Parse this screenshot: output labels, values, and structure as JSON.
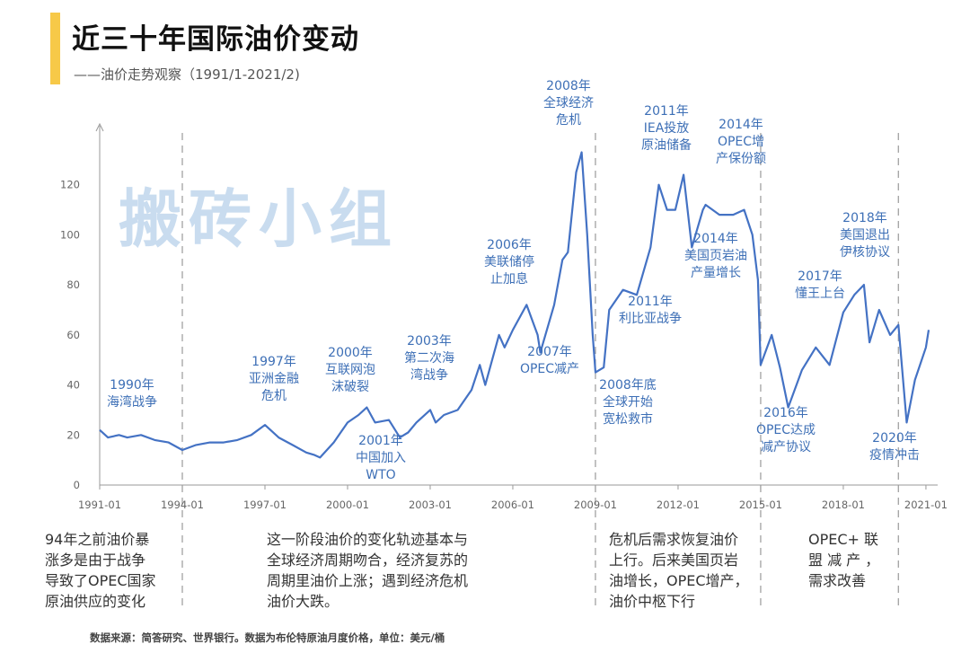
{
  "title": "近三十年国际油价变动",
  "subtitle": "——油价走势观察（1991/1-2021/2)",
  "watermark": "搬砖小组",
  "source": "数据来源：简答研究、世界银行。数据为布伦特原油月度价格，单位：美元/桶",
  "colors": {
    "line": "#4472c4",
    "event_text": "#3d6fb6",
    "accent": "#f7c948"
  },
  "chart_data": {
    "type": "line",
    "ylim": [
      0,
      140
    ],
    "y_ticks": [
      0,
      20,
      40,
      60,
      80,
      100,
      120
    ],
    "x_tick_labels": [
      "1991-01",
      "1994-01",
      "1997-01",
      "2000-01",
      "2003-01",
      "2006-01",
      "2009-01",
      "2012-01",
      "2015-01",
      "2018-01",
      "2021-01"
    ],
    "series": [
      {
        "x": [
          1991.0,
          1991.3,
          1991.7,
          1992.0,
          1992.5,
          1993.0,
          1993.5,
          1994.0,
          1994.5,
          1995.0,
          1995.5,
          1996.0,
          1996.5,
          1997.0,
          1997.5,
          1998.0,
          1998.5,
          1998.8,
          1999.0,
          1999.5,
          2000.0,
          2000.4,
          2000.7,
          2001.0,
          2001.5,
          2001.9,
          2002.2,
          2002.5,
          2003.0,
          2003.2,
          2003.5,
          2004.0,
          2004.5,
          2004.8,
          2005.0,
          2005.5,
          2005.7,
          2006.0,
          2006.5,
          2006.9,
          2007.0,
          2007.5,
          2007.8,
          2008.0,
          2008.3,
          2008.5,
          2008.7,
          2008.9,
          2009.0,
          2009.3,
          2009.5,
          2010.0,
          2010.5,
          2011.0,
          2011.3,
          2011.6,
          2011.9,
          2012.2,
          2012.5,
          2012.9,
          2013.0,
          2013.5,
          2014.0,
          2014.4,
          2014.7,
          2014.9,
          2015.0,
          2015.4,
          2015.7,
          2016.0,
          2016.5,
          2017.0,
          2017.5,
          2018.0,
          2018.4,
          2018.75,
          2018.95,
          2019.3,
          2019.7,
          2020.0,
          2020.3,
          2020.6,
          2021.0,
          2021.1
        ],
        "values": [
          22,
          19,
          20,
          19,
          20,
          18,
          17,
          14,
          16,
          17,
          17,
          18,
          20,
          24,
          19,
          16,
          13,
          12,
          11,
          17,
          25,
          28,
          31,
          25,
          26,
          19,
          21,
          25,
          30,
          25,
          28,
          30,
          38,
          48,
          40,
          60,
          55,
          62,
          72,
          60,
          53,
          72,
          90,
          93,
          125,
          133,
          100,
          60,
          45,
          47,
          70,
          78,
          76,
          95,
          120,
          110,
          110,
          124,
          95,
          110,
          112,
          108,
          108,
          110,
          100,
          82,
          48,
          60,
          47,
          31,
          46,
          55,
          48,
          69,
          76,
          80,
          57,
          70,
          60,
          64,
          25,
          42,
          55,
          62
        ]
      }
    ],
    "events": [
      {
        "year": 1990,
        "title": "1990年",
        "desc": "海湾战争"
      },
      {
        "year": 1997,
        "title": "1997年",
        "desc": "亚洲金融危机"
      },
      {
        "year": 2000,
        "title": "2000年",
        "desc": "互联网泡沫破裂"
      },
      {
        "year": 2001,
        "title": "2001年",
        "desc": "中国加入WTO"
      },
      {
        "year": 2003,
        "title": "2003年",
        "desc": "第二次海湾战争"
      },
      {
        "year": 2006,
        "title": "2006年",
        "desc": "美联储停止加息"
      },
      {
        "year": 2007,
        "title": "2007年",
        "desc": "OPEC减产"
      },
      {
        "year": 2008,
        "title": "2008年",
        "desc": "全球经济危机"
      },
      {
        "year": 2008,
        "title": "2008年底",
        "desc": "全球开始宽松救市"
      },
      {
        "year": 2011,
        "title": "2011年",
        "desc": "IEA投放原油储备"
      },
      {
        "year": 2011,
        "title": "2011年",
        "desc": "利比亚战争"
      },
      {
        "year": 2014,
        "title": "2014年",
        "desc": "OPEC增产保份额"
      },
      {
        "year": 2014,
        "title": "2014年",
        "desc": "美国页岩油产量增长"
      },
      {
        "year": 2016,
        "title": "2016年",
        "desc": "OPEC达成减产协议"
      },
      {
        "year": 2017,
        "title": "2017年",
        "desc": "懂王上台"
      },
      {
        "year": 2018,
        "title": "2018年",
        "desc": "美国退出伊核协议"
      },
      {
        "year": 2020,
        "title": "2020年",
        "desc": "疫情冲击"
      }
    ]
  },
  "notes": [
    {
      "text": "94年之前油价暴\n涨多是由于战争\n导致了OPEC国家\n原油供应的变化"
    },
    {
      "text": "这一阶段油价的变化轨迹基本与\n全球经济周期吻合，经济复苏的\n周期里油价上涨；遇到经济危机\n油价大跌。"
    },
    {
      "text": "危机后需求恢复油价\n上行。后来美国页岩\n油增长，OPEC增产，\n油价中枢下行"
    },
    {
      "text": "OPEC+ 联\n盟 减 产 ，\n需求改善"
    }
  ]
}
